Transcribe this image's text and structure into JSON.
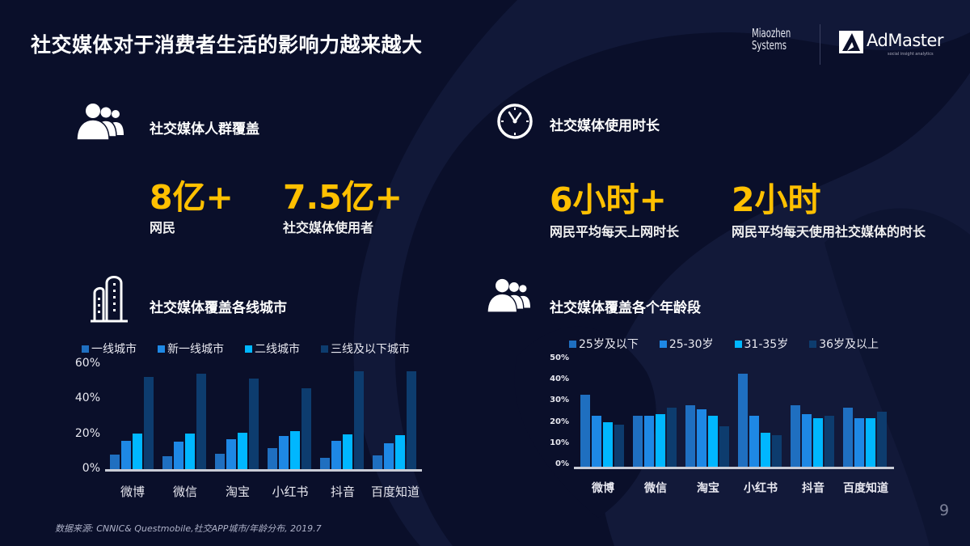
{
  "slide": {
    "title": "社交媒体对于消费者生活的影响力越来越大",
    "page_number": "9",
    "source": "数据来源: CNNIC& Questmobile,社交APP城市/年龄分布, 2019.7"
  },
  "logos": {
    "miaozhen_line1": "Miaozhen",
    "miaozhen_line2": "Systems",
    "admaster": "AdMaster",
    "admaster_tagline": "social insight analytics"
  },
  "sections": {
    "coverage": {
      "title": "社交媒体人群覆盖",
      "icon": "people-group-icon",
      "stats": [
        {
          "value": "8亿+",
          "caption": "网民"
        },
        {
          "value": "7.5亿+",
          "caption": "社交媒体使用者"
        }
      ]
    },
    "duration": {
      "title": "社交媒体使用时长",
      "icon": "clock-icon",
      "stats": [
        {
          "value": "6小时+",
          "caption": "网民平均每天上网时长"
        },
        {
          "value": "2小时",
          "caption": "网民平均每天使用社交媒体的时长"
        }
      ]
    },
    "city_chart": {
      "title": "社交媒体覆盖各线城市",
      "icon": "buildings-icon"
    },
    "age_chart": {
      "title": "社交媒体覆盖各个年龄段",
      "icon": "people-group-icon"
    }
  },
  "colors": {
    "background": "#0a0f2a",
    "accent_yellow": "#ffc000",
    "series1": "#1f6fc0",
    "series2": "#1e88e5",
    "series3": "#00b7ff",
    "series4": "#0d3c6e"
  },
  "chart_data": [
    {
      "type": "bar",
      "title": "社交媒体覆盖各线城市",
      "categories": [
        "微博",
        "微信",
        "淘宝",
        "小红书",
        "抖音",
        "百度知道"
      ],
      "series": [
        {
          "name": "一线城市",
          "color": "#1f6fc0",
          "values": [
            8.5,
            7.5,
            9,
            12,
            6.5,
            8
          ]
        },
        {
          "name": "新一线城市",
          "color": "#1e88e5",
          "values": [
            16,
            15.5,
            17,
            19,
            16,
            15
          ]
        },
        {
          "name": "二线城市",
          "color": "#00b7ff",
          "values": [
            20.5,
            20.5,
            21,
            21.5,
            20,
            19.5
          ]
        },
        {
          "name": "三线及以下城市",
          "color": "#0d3c6e",
          "values": [
            52.5,
            54.5,
            51.5,
            46,
            56,
            56
          ]
        }
      ],
      "yticks": [
        "0%",
        "20%",
        "40%",
        "60%"
      ],
      "ylim": [
        0,
        60
      ],
      "xlabel": "",
      "ylabel": "",
      "grid": false,
      "legend_position": "top"
    },
    {
      "type": "bar",
      "title": "社交媒体覆盖各个年龄段",
      "categories": [
        "微博",
        "微信",
        "淘宝",
        "小红书",
        "抖音",
        "百度知道"
      ],
      "series": [
        {
          "name": "25岁及以下",
          "color": "#1f6fc0",
          "values": [
            34,
            24,
            29,
            44,
            29,
            28
          ]
        },
        {
          "name": "25-30岁",
          "color": "#1e88e5",
          "values": [
            24,
            24,
            27,
            24,
            25,
            23
          ]
        },
        {
          "name": "31-35岁",
          "color": "#00b7ff",
          "values": [
            21,
            25,
            24,
            16,
            23,
            23
          ]
        },
        {
          "name": "36岁及以上",
          "color": "#0d3c6e",
          "values": [
            20,
            28,
            19,
            15,
            24,
            26
          ]
        }
      ],
      "yticks": [
        "0%",
        "10%",
        "20%",
        "30%",
        "40%",
        "50%"
      ],
      "ylim": [
        0,
        50
      ],
      "xlabel": "",
      "ylabel": "",
      "grid": false,
      "legend_position": "top"
    }
  ]
}
